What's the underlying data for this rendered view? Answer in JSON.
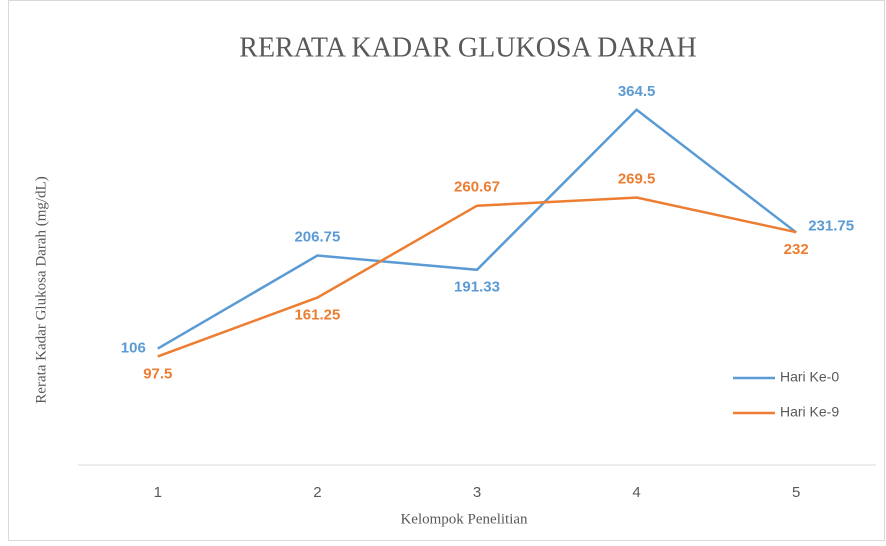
{
  "chart_data": {
    "type": "line",
    "title": "RERATA KADAR GLUKOSA DARAH",
    "x_label": "Kelompok Penelitian",
    "y_label": "Rerata Kadar Glukosa Darah  (mg/dL)",
    "categories": [
      "1",
      "2",
      "3",
      "4",
      "5"
    ],
    "series": [
      {
        "name": "Hari Ke-0",
        "color": "#5b9bd5",
        "values": [
          106,
          206.75,
          191.33,
          364.5,
          231.75
        ]
      },
      {
        "name": "Hari Ke-9",
        "color": "#ed7d31",
        "values": [
          97.5,
          161.25,
          260.67,
          269.5,
          232
        ]
      }
    ],
    "ylim": [
      -20,
      400
    ],
    "legend": "right"
  }
}
